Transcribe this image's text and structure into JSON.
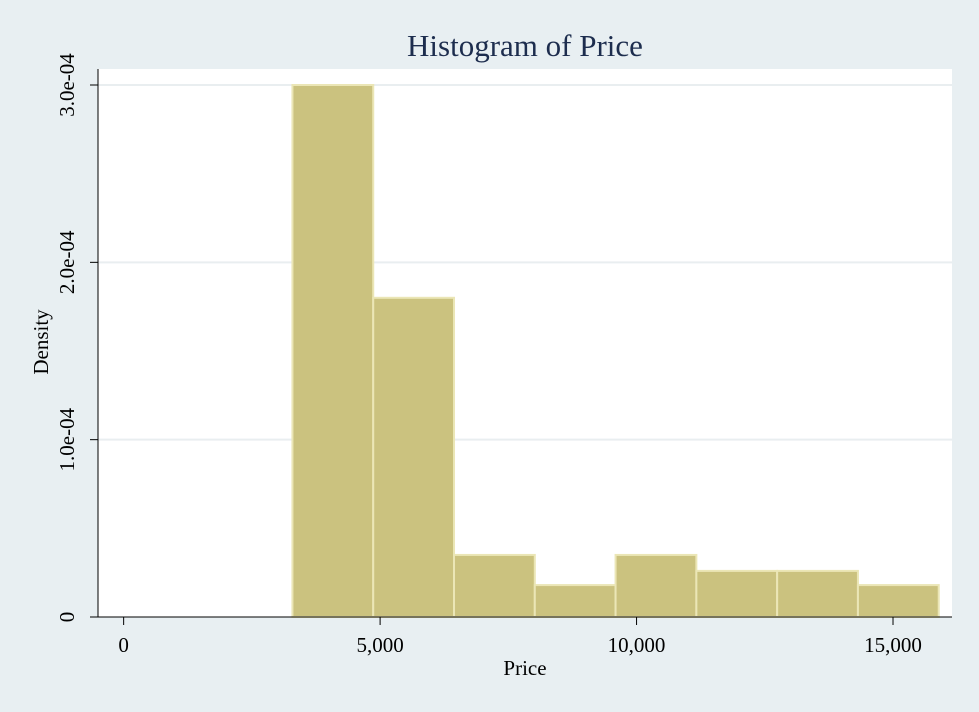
{
  "chart_data": {
    "type": "bar",
    "title": "Histogram of Price",
    "xlabel": "Price",
    "ylabel": "Density",
    "xlim": [
      -500,
      16150
    ],
    "ylim": [
      0,
      0.0003
    ],
    "x_ticks": [
      0,
      5000,
      10000,
      15000
    ],
    "x_tick_labels": [
      "0",
      "5,000",
      "10,000",
      "15,000"
    ],
    "y_ticks": [
      0,
      0.0001,
      0.0002,
      0.0003
    ],
    "y_tick_labels": [
      "0",
      "1.0e-04",
      "2.0e-04",
      "3.0e-04"
    ],
    "grid": true,
    "bins": [
      {
        "x0": 3291,
        "x1": 4866,
        "density": 0.0003
      },
      {
        "x0": 4866,
        "x1": 6441,
        "density": 0.00018
      },
      {
        "x0": 6441,
        "x1": 8016,
        "density": 3.5e-05
      },
      {
        "x0": 8016,
        "x1": 9591,
        "density": 1.8e-05
      },
      {
        "x0": 9591,
        "x1": 11166,
        "density": 3.5e-05
      },
      {
        "x0": 11166,
        "x1": 12741,
        "density": 2.6e-05
      },
      {
        "x0": 12741,
        "x1": 14316,
        "density": 2.6e-05
      },
      {
        "x0": 14316,
        "x1": 15891,
        "density": 1.8e-05
      }
    ],
    "colors": {
      "bar_fill": "#cbc27f",
      "bar_stroke": "#ebe6b6",
      "background": "#e8eff2",
      "plot_background": "#ffffff",
      "grid": "#e9eef0",
      "title": "#1d2d4e"
    }
  }
}
